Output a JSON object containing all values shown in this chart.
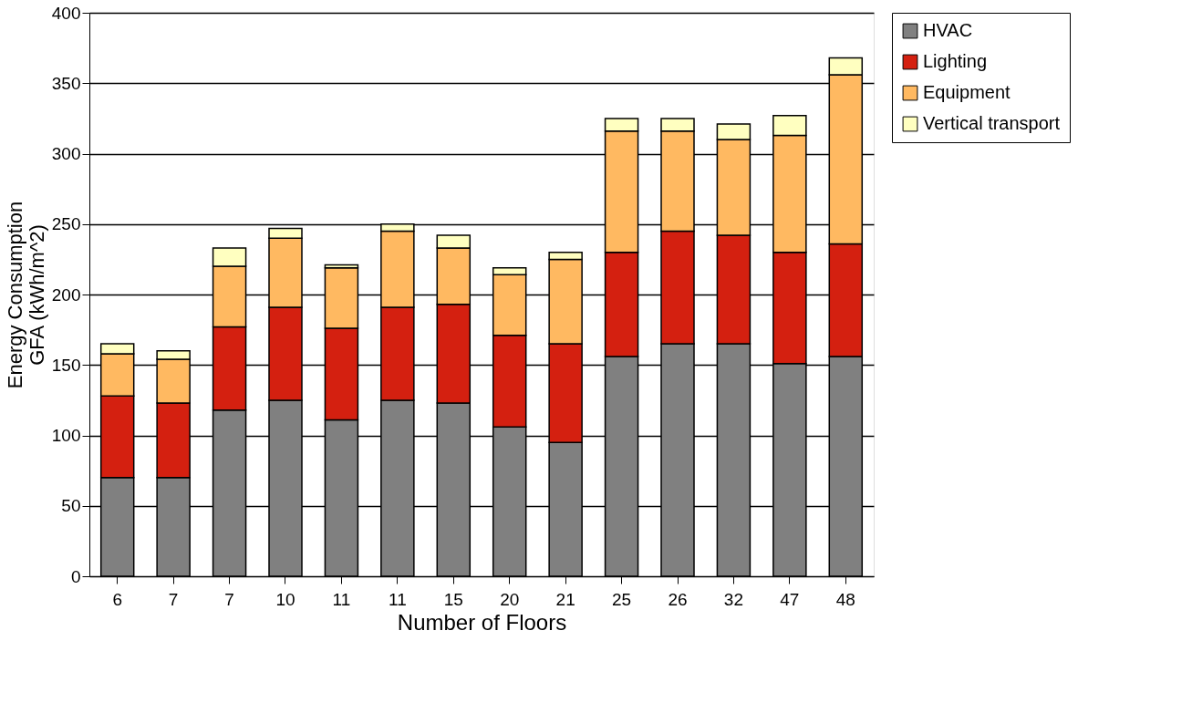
{
  "chart_data": {
    "type": "bar",
    "stacked": true,
    "xlabel": "Number of Floors",
    "ylabel": "Energy Consumption\nGFA (kWh/m^2)",
    "categories": [
      "6",
      "7",
      "7",
      "10",
      "11",
      "11",
      "15",
      "20",
      "21",
      "25",
      "26",
      "32",
      "47",
      "48"
    ],
    "series": [
      {
        "name": "HVAC",
        "color": "#808080",
        "values": [
          70,
          70,
          118,
          125,
          111,
          125,
          123,
          106,
          95,
          156,
          165,
          165,
          151,
          156
        ]
      },
      {
        "name": "Lighting",
        "color": "#d42010",
        "values": [
          58,
          53,
          59,
          66,
          65,
          66,
          70,
          65,
          70,
          74,
          80,
          77,
          79,
          80
        ]
      },
      {
        "name": "Equipment",
        "color": "#ffb961",
        "values": [
          30,
          31,
          43,
          49,
          43,
          54,
          40,
          43,
          60,
          86,
          71,
          68,
          83,
          120
        ]
      },
      {
        "name": "Vertical transport",
        "color": "#ffffc0",
        "values": [
          7,
          6,
          13,
          7,
          2,
          5,
          9,
          5,
          5,
          9,
          9,
          11,
          14,
          12
        ]
      }
    ],
    "ylim": [
      0,
      400
    ],
    "yticks": [
      0,
      50,
      100,
      150,
      200,
      250,
      300,
      350,
      400
    ],
    "grid": "y",
    "legend": "right"
  }
}
